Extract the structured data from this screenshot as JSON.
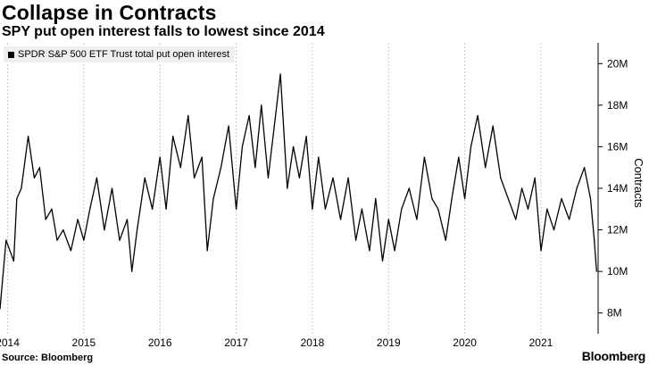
{
  "title": "Collapse in Contracts",
  "subtitle": "SPY put open interest falls to lowest since 2014",
  "source": "Source: Bloomberg",
  "brand": "Bloomberg",
  "chart_data": {
    "type": "line",
    "legend": [
      "SPDR S&P 500 ETF Trust total put open interest"
    ],
    "legend_position": "top-left",
    "ylabel": "Contracts",
    "y_axis_side": "right",
    "ylim": [
      7000000,
      21000000
    ],
    "yticks": [
      8000000,
      10000000,
      12000000,
      14000000,
      16000000,
      18000000,
      20000000
    ],
    "ytick_labels": [
      "8M",
      "10M",
      "12M",
      "14M",
      "16M",
      "18M",
      "20M"
    ],
    "xlim": [
      2013.9,
      2021.75
    ],
    "xticks": [
      2014,
      2015,
      2016,
      2017,
      2018,
      2019,
      2020,
      2021
    ],
    "xtick_labels": [
      "2014",
      "2015",
      "2016",
      "2017",
      "2018",
      "2019",
      "2020",
      "2021"
    ],
    "grid": "dashed vertical lines at year boundaries",
    "line_color": "#000000",
    "series": [
      {
        "name": "SPDR S&P 500 ETF Trust total put open interest",
        "x": [
          2013.9,
          2013.98,
          2014.08,
          2014.12,
          2014.18,
          2014.27,
          2014.35,
          2014.42,
          2014.5,
          2014.58,
          2014.65,
          2014.73,
          2014.83,
          2014.92,
          2015.0,
          2015.08,
          2015.17,
          2015.27,
          2015.37,
          2015.47,
          2015.57,
          2015.63,
          2015.7,
          2015.8,
          2015.9,
          2016.0,
          2016.08,
          2016.17,
          2016.27,
          2016.37,
          2016.45,
          2016.55,
          2016.62,
          2016.7,
          2016.8,
          2016.9,
          2017.0,
          2017.08,
          2017.17,
          2017.25,
          2017.33,
          2017.42,
          2017.5,
          2017.58,
          2017.67,
          2017.75,
          2017.83,
          2017.92,
          2018.0,
          2018.08,
          2018.17,
          2018.27,
          2018.37,
          2018.47,
          2018.57,
          2018.65,
          2018.75,
          2018.83,
          2018.92,
          2019.0,
          2019.08,
          2019.17,
          2019.27,
          2019.37,
          2019.47,
          2019.57,
          2019.65,
          2019.75,
          2019.83,
          2019.92,
          2020.0,
          2020.08,
          2020.17,
          2020.27,
          2020.37,
          2020.47,
          2020.57,
          2020.67,
          2020.75,
          2020.83,
          2020.92,
          2021.0,
          2021.08,
          2021.17,
          2021.27,
          2021.37,
          2021.47,
          2021.57,
          2021.65,
          2021.7,
          2021.73
        ],
        "values": [
          8200000,
          11500000,
          10500000,
          13500000,
          14000000,
          16500000,
          14500000,
          15000000,
          12500000,
          13000000,
          11500000,
          12000000,
          11000000,
          12500000,
          11500000,
          13000000,
          14500000,
          12000000,
          14000000,
          11500000,
          12500000,
          10000000,
          12000000,
          14500000,
          13000000,
          15500000,
          13000000,
          16500000,
          15000000,
          17500000,
          14500000,
          15500000,
          11000000,
          13500000,
          15000000,
          17000000,
          13000000,
          16000000,
          17500000,
          15000000,
          18000000,
          14500000,
          17000000,
          19500000,
          14000000,
          16000000,
          14500000,
          16500000,
          13000000,
          15500000,
          13000000,
          14500000,
          12500000,
          14500000,
          11500000,
          13000000,
          11000000,
          13500000,
          10500000,
          12500000,
          11000000,
          13000000,
          14000000,
          12500000,
          15500000,
          13500000,
          13000000,
          11500000,
          13500000,
          15500000,
          13500000,
          16000000,
          17500000,
          15000000,
          17000000,
          14500000,
          13500000,
          12500000,
          14000000,
          13000000,
          14500000,
          11000000,
          13000000,
          12000000,
          13500000,
          12500000,
          14000000,
          15000000,
          13500000,
          11500000,
          10000000
        ]
      }
    ]
  }
}
